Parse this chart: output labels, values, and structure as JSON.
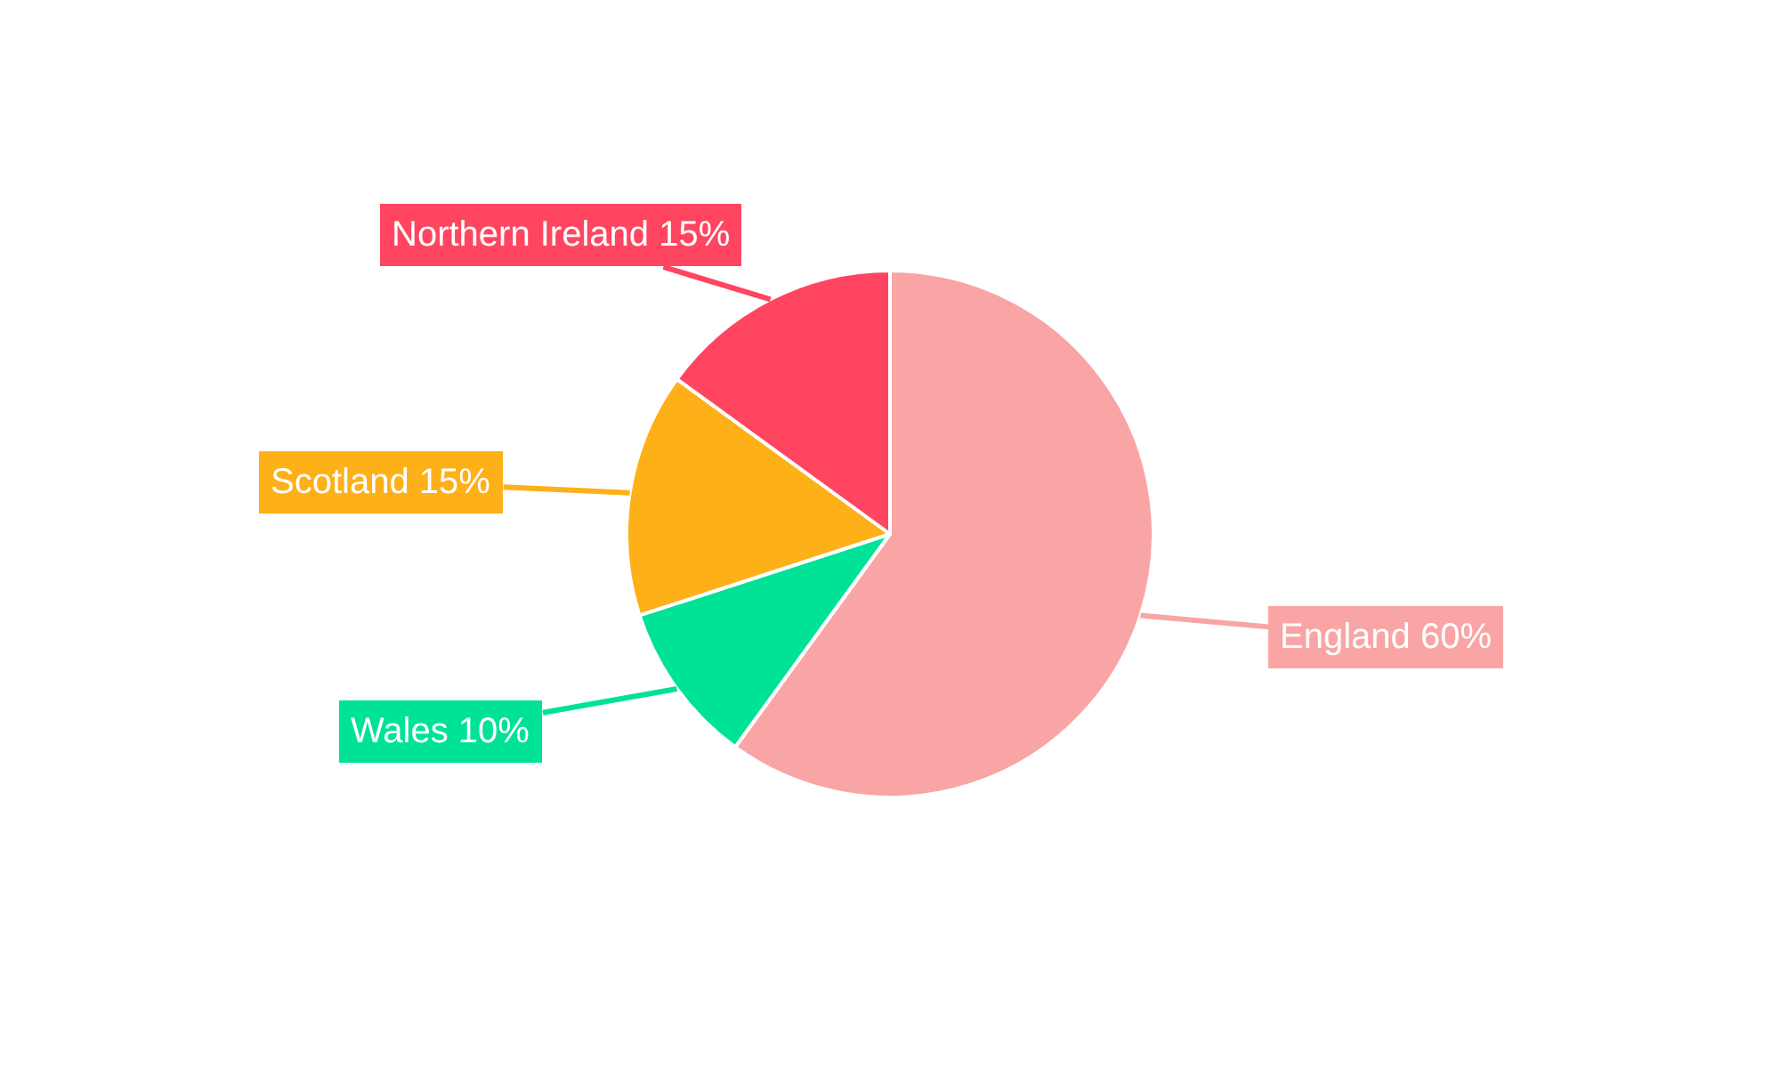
{
  "chart_data": {
    "type": "pie",
    "categories": [
      "England",
      "Wales",
      "Scotland",
      "Northern Ireland"
    ],
    "values": [
      60,
      10,
      15,
      15
    ],
    "colors": [
      "#f9a5a5",
      "#00e396",
      "#feb019",
      "#ff4560"
    ],
    "value_labels": [
      "60%",
      "10%",
      "15%",
      "15%"
    ]
  }
}
